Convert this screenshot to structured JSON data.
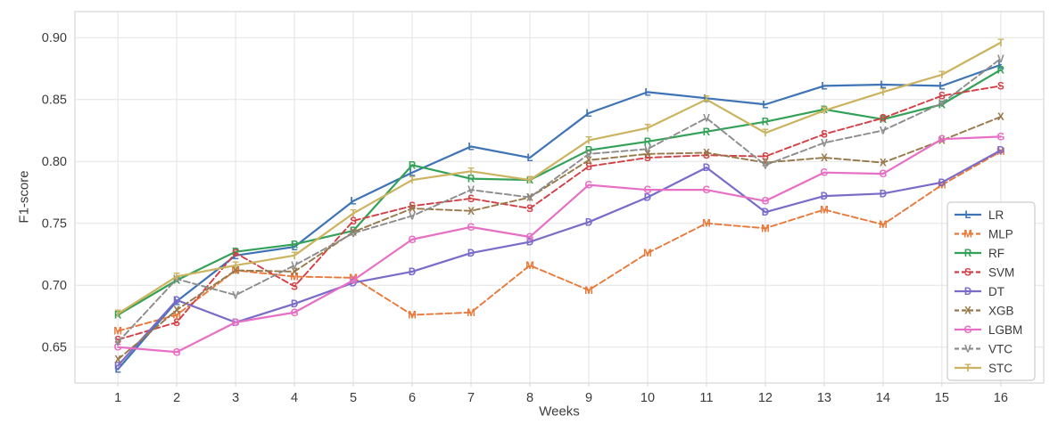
{
  "chart_data": {
    "type": "line",
    "title": "",
    "xlabel": "Weeks",
    "ylabel": "F1-score",
    "x": [
      1,
      2,
      3,
      4,
      5,
      6,
      7,
      8,
      9,
      10,
      11,
      12,
      13,
      14,
      15,
      16
    ],
    "x_tick_labels": [
      "1",
      "2",
      "3",
      "4",
      "5",
      "6",
      "7",
      "8",
      "9",
      "10",
      "11",
      "12",
      "13",
      "14",
      "15",
      "16"
    ],
    "y_ticks": [
      0.65,
      0.7,
      0.75,
      0.8,
      0.85,
      0.9
    ],
    "y_tick_labels": [
      "0.65",
      "0.70",
      "0.75",
      "0.80",
      "0.85",
      "0.90"
    ],
    "xlim": [
      0.27,
      16.73
    ],
    "ylim": [
      0.621,
      0.921
    ],
    "grid": true,
    "legend_position": "lower right",
    "colors": {
      "grid": "#e3e3e3",
      "spine": "#d6d6d6",
      "tick_text": "#3b3b3b",
      "legend_border": "#cccccc",
      "legend_text": "#3a3a3a",
      "background": "#ffffff"
    },
    "series": [
      {
        "name": "LR",
        "color": "#3e74b5",
        "style": "solid",
        "marker": "L",
        "values": [
          0.632,
          0.687,
          0.724,
          0.731,
          0.768,
          0.791,
          0.812,
          0.803,
          0.839,
          0.856,
          0.851,
          0.846,
          0.861,
          0.862,
          0.861,
          0.878
        ]
      },
      {
        "name": "MLP",
        "color": "#e8793b",
        "style": "dashed",
        "marker": "M",
        "values": [
          0.663,
          0.676,
          0.712,
          0.707,
          0.706,
          0.676,
          0.678,
          0.716,
          0.696,
          0.726,
          0.75,
          0.746,
          0.761,
          0.749,
          0.781,
          0.808
        ]
      },
      {
        "name": "RF",
        "color": "#33a158",
        "style": "solid",
        "marker": "R",
        "values": [
          0.676,
          0.704,
          0.727,
          0.733,
          0.744,
          0.797,
          0.786,
          0.785,
          0.809,
          0.816,
          0.824,
          0.832,
          0.842,
          0.834,
          0.846,
          0.874
        ]
      },
      {
        "name": "SVM",
        "color": "#d23f44",
        "style": "dashed",
        "marker": "S",
        "values": [
          0.656,
          0.67,
          0.726,
          0.699,
          0.752,
          0.764,
          0.77,
          0.762,
          0.796,
          0.803,
          0.805,
          0.804,
          0.822,
          0.835,
          0.853,
          0.861
        ]
      },
      {
        "name": "DT",
        "color": "#7a6bc9",
        "style": "solid",
        "marker": "D",
        "values": [
          0.635,
          0.688,
          0.67,
          0.685,
          0.702,
          0.711,
          0.726,
          0.735,
          0.751,
          0.771,
          0.795,
          0.759,
          0.772,
          0.774,
          0.783,
          0.809
        ]
      },
      {
        "name": "XGB",
        "color": "#97784a",
        "style": "dashed",
        "marker": "X",
        "values": [
          0.64,
          0.68,
          0.712,
          0.711,
          0.743,
          0.762,
          0.76,
          0.771,
          0.801,
          0.806,
          0.807,
          0.799,
          0.803,
          0.799,
          0.817,
          0.836
        ]
      },
      {
        "name": "LGBM",
        "color": "#e76fc4",
        "style": "solid",
        "marker": "G",
        "values": [
          0.65,
          0.646,
          0.67,
          0.678,
          0.704,
          0.737,
          0.747,
          0.739,
          0.781,
          0.777,
          0.777,
          0.768,
          0.791,
          0.79,
          0.818,
          0.82
        ]
      },
      {
        "name": "VTC",
        "color": "#8c8c8c",
        "style": "dashed",
        "marker": "V",
        "values": [
          0.654,
          0.705,
          0.692,
          0.716,
          0.742,
          0.756,
          0.777,
          0.771,
          0.806,
          0.81,
          0.835,
          0.797,
          0.815,
          0.825,
          0.847,
          0.883
        ]
      },
      {
        "name": "STC",
        "color": "#cbb360",
        "style": "solid",
        "marker": "T",
        "values": [
          0.677,
          0.707,
          0.716,
          0.724,
          0.758,
          0.785,
          0.792,
          0.785,
          0.817,
          0.827,
          0.85,
          0.823,
          0.841,
          0.856,
          0.87,
          0.896
        ]
      }
    ]
  }
}
